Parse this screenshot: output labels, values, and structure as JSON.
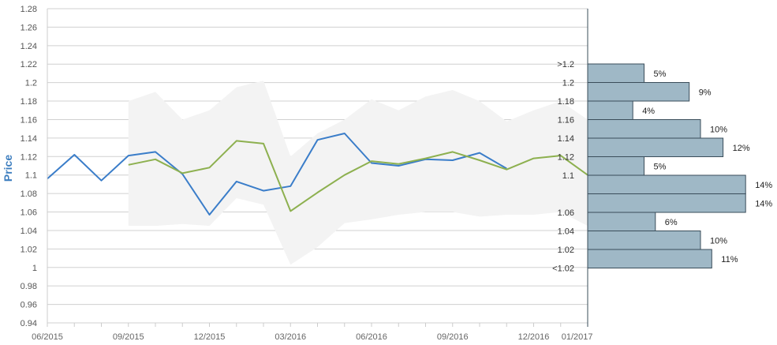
{
  "chart_data": {
    "type": "line",
    "ylabel": "Price",
    "xlabel": "",
    "ylim": [
      0.94,
      1.28
    ],
    "yticks": [
      "0.94",
      "0.96",
      "0.98",
      "1",
      "1.02",
      "1.04",
      "1.06",
      "1.08",
      "1.1",
      "1.12",
      "1.14",
      "1.16",
      "1.18",
      "1.2",
      "1.22",
      "1.24",
      "1.26",
      "1.28"
    ],
    "xticks": [
      "06/2015",
      "09/2015",
      "12/2015",
      "03/2016",
      "06/2016",
      "09/2016",
      "12/2016",
      "01/2017"
    ],
    "colors": {
      "historical": "#3a7dc9",
      "forecast": "#8db04f",
      "band": "#f3f3f3",
      "histogram_fill": "#9fb8c6",
      "histogram_stroke": "#3a4d5a",
      "axis_label": "#3d7ebf"
    },
    "series": [
      {
        "x": [
          "2015-06",
          "2015-07",
          "2015-08",
          "2015-09",
          "2015-10",
          "2015-11",
          "2015-12",
          "2016-01",
          "2016-02",
          "2016-03",
          "2016-04",
          "2016-05",
          "2016-06",
          "2016-07",
          "2016-08",
          "2016-09",
          "2016-10",
          "2016-11"
        ],
        "values": [
          1.096,
          1.122,
          1.094,
          1.121,
          1.125,
          1.101,
          1.057,
          1.093,
          1.083,
          1.088,
          1.138,
          1.145,
          1.113,
          1.11,
          1.117,
          1.116,
          1.124,
          1.107
        ]
      },
      {
        "x": [
          "2015-09",
          "2015-10",
          "2015-11",
          "2015-12",
          "2016-01",
          "2016-02",
          "2016-03",
          "2016-04",
          "2016-05",
          "2016-06",
          "2016-07",
          "2016-08",
          "2016-09",
          "2016-10",
          "2016-11",
          "2016-12",
          "2017-01",
          "2017-02"
        ],
        "values": [
          1.111,
          1.117,
          1.102,
          1.108,
          1.137,
          1.134,
          1.061,
          1.081,
          1.1,
          1.115,
          1.112,
          1.118,
          1.125,
          1.116,
          1.106,
          1.118,
          1.121,
          1.1
        ]
      }
    ],
    "band": {
      "x": [
        "2015-09",
        "2015-10",
        "2015-11",
        "2015-12",
        "2016-01",
        "2016-02",
        "2016-03",
        "2016-04",
        "2016-05",
        "2016-06",
        "2016-07",
        "2016-08",
        "2016-09",
        "2016-10",
        "2016-11",
        "2016-12",
        "2017-01",
        "2017-02"
      ],
      "upper": [
        1.18,
        1.19,
        1.16,
        1.17,
        1.195,
        1.202,
        1.12,
        1.145,
        1.16,
        1.182,
        1.17,
        1.185,
        1.192,
        1.18,
        1.158,
        1.17,
        1.18,
        1.16
      ],
      "lower": [
        1.045,
        1.045,
        1.047,
        1.045,
        1.075,
        1.068,
        1.003,
        1.022,
        1.048,
        1.052,
        1.057,
        1.06,
        1.06,
        1.055,
        1.057,
        1.057,
        1.06,
        1.045
      ]
    },
    "distribution": {
      "bins": [
        {
          "label": ">1.2",
          "pct": 5,
          "text": "5%"
        },
        {
          "label": "1.2",
          "pct": 9,
          "text": "9%"
        },
        {
          "label": "1.18",
          "pct": 4,
          "text": "4%"
        },
        {
          "label": "1.16",
          "pct": 10,
          "text": "10%"
        },
        {
          "label": "1.14",
          "pct": 12,
          "text": "12%"
        },
        {
          "label": "1.12",
          "pct": 5,
          "text": "5%"
        },
        {
          "label": "1.1",
          "pct": 14,
          "text": "14%"
        },
        {
          "label": "",
          "pct": 14,
          "text": "14%"
        },
        {
          "label": "1.06",
          "pct": 6,
          "text": "6%"
        },
        {
          "label": "1.04",
          "pct": 10,
          "text": "10%"
        },
        {
          "label": "1.02",
          "pct": 11,
          "text": "11%"
        },
        {
          "label": "<1.02",
          "pct": 0,
          "text": ""
        }
      ]
    }
  }
}
